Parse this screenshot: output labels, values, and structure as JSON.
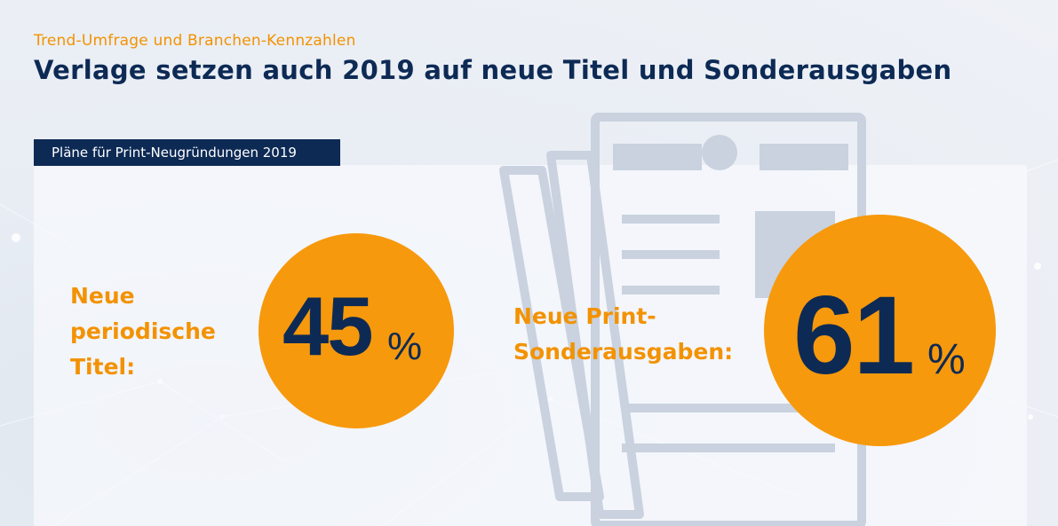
{
  "header": {
    "kicker": "Trend-Umfrage und Branchen-Kennzahlen",
    "title": "Verlage setzen auch 2019 auf neue Titel und Sonderausgaben"
  },
  "panel": {
    "tag": "Pläne für Print-Neugründungen 2019"
  },
  "stats": [
    {
      "label": "Neue periodische Titel:",
      "value": "45",
      "unit": "%"
    },
    {
      "label": "Neue Print-Sonderausgaben:",
      "value": "61",
      "unit": "%"
    }
  ],
  "colors": {
    "accent_orange": "#f39200",
    "circle_orange": "#f7990c",
    "navy": "#0d2a55",
    "document_gray": "#c9d2de"
  },
  "icons": [
    "newspaper-icon"
  ]
}
